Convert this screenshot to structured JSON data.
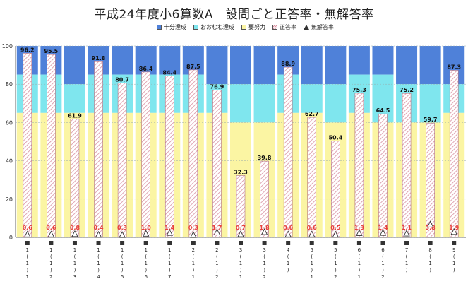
{
  "chart_data": {
    "type": "bar",
    "title": "平成24年度小6算数A　設問ごと正答率・無解答率",
    "legend": {
      "position": "top",
      "items": [
        {
          "key": "band_high",
          "label": "十分達成",
          "color": "#4f81d9"
        },
        {
          "key": "band_mid",
          "label": "おおむね達成",
          "color": "#7fe6ee"
        },
        {
          "key": "band_low",
          "label": "要努力",
          "color": "#fbf5a3"
        },
        {
          "key": "correct",
          "label": "正答率",
          "color": "#f0c0c8"
        },
        {
          "key": "noanswer",
          "label": "無解答率",
          "color": "#333333"
        }
      ]
    },
    "ylim": [
      0,
      100
    ],
    "yticks": [
      0,
      20,
      40,
      60,
      80,
      100
    ],
    "categories": [
      [
        "1",
        "(",
        "1",
        ")",
        "1"
      ],
      [
        "1",
        "(",
        "1",
        ")",
        "2"
      ],
      [
        "1",
        "(",
        "1",
        ")",
        "3"
      ],
      [
        "1",
        "(",
        "1",
        ")",
        "4"
      ],
      [
        "1",
        "(",
        "1",
        ")",
        "5"
      ],
      [
        "1",
        "(",
        "1",
        ")",
        "6"
      ],
      [
        "1",
        "(",
        "1",
        ")",
        "7"
      ],
      [
        "2",
        "(",
        "1",
        ")",
        "1"
      ],
      [
        "2",
        "(",
        "1",
        ")",
        "2"
      ],
      [
        "3",
        "(",
        "1",
        ")",
        "1"
      ],
      [
        "3",
        "(",
        "1",
        ")",
        "2"
      ],
      [
        "4",
        "(",
        "1",
        ")",
        ""
      ],
      [
        "5",
        "(",
        "1",
        ")",
        "1"
      ],
      [
        "5",
        "(",
        "1",
        ")",
        "2"
      ],
      [
        "6",
        "(",
        "1",
        ")",
        "1"
      ],
      [
        "6",
        "(",
        "1",
        ")",
        "2"
      ],
      [
        "7",
        "(",
        "1",
        ")",
        ""
      ],
      [
        "8",
        "(",
        "1",
        ")",
        ""
      ],
      [
        "9",
        "(",
        "1",
        ")",
        ""
      ]
    ],
    "band_low_top": [
      65,
      65,
      65,
      65,
      65,
      65,
      65,
      65,
      65,
      60,
      60,
      65,
      65,
      60,
      65,
      60,
      60,
      60,
      65
    ],
    "band_mid_top": [
      85,
      85,
      80,
      85,
      85,
      85,
      85,
      85,
      80,
      80,
      80,
      85,
      80,
      80,
      85,
      85,
      80,
      80,
      80
    ],
    "series": [
      {
        "name": "正答率",
        "values": [
          96.2,
          95.5,
          61.9,
          91.8,
          80.7,
          86.4,
          84.4,
          87.5,
          76.9,
          32.3,
          39.8,
          88.9,
          62.7,
          50.4,
          75.3,
          64.5,
          75.2,
          59.7,
          87.3
        ]
      },
      {
        "name": "無解答率",
        "values": [
          0.6,
          0.6,
          0.8,
          0.4,
          0.3,
          1.0,
          1.4,
          0.3,
          1.7,
          0.7,
          1.8,
          0.6,
          0.6,
          0.5,
          1.3,
          1.4,
          1.1,
          5.8,
          1.9
        ]
      }
    ]
  }
}
